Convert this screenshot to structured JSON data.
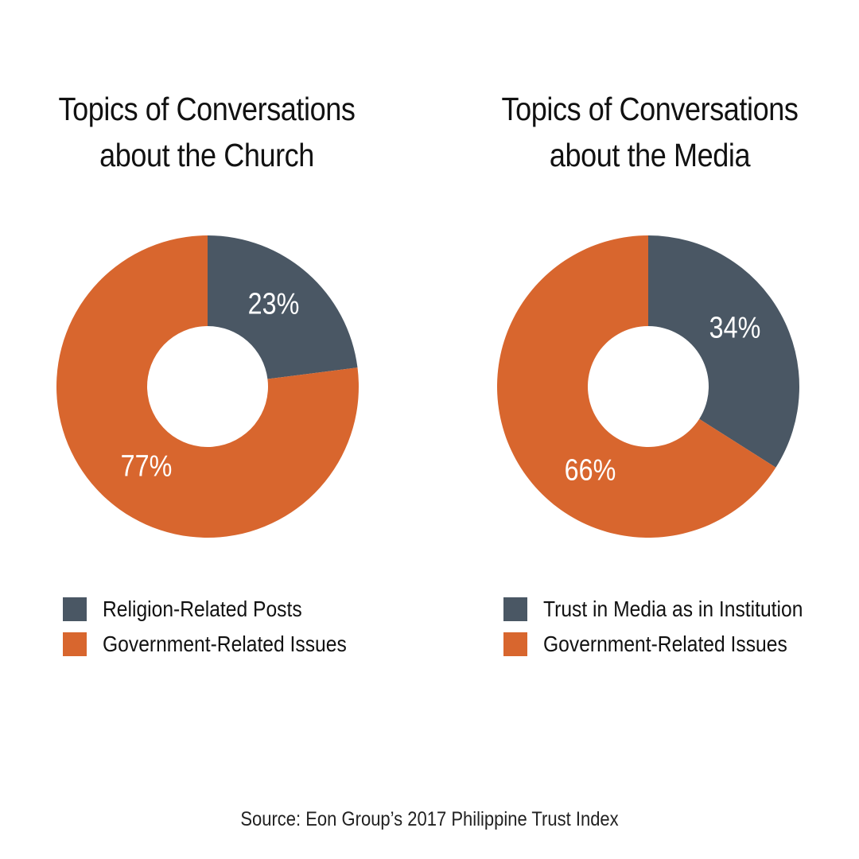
{
  "chart_data": [
    {
      "type": "pie",
      "style": "donut",
      "title": [
        "Topics of Conversations",
        "about the Church"
      ],
      "slices": [
        {
          "label": "Religion-Related Posts",
          "value": 23,
          "display": "23%",
          "color": "#4a5764"
        },
        {
          "label": "Government-Related Issues",
          "value": 77,
          "display": "77%",
          "color": "#d8662e"
        }
      ]
    },
    {
      "type": "pie",
      "style": "donut",
      "title": [
        "Topics of Conversations",
        "about the Media"
      ],
      "slices": [
        {
          "label": "Trust in Media as in Institution",
          "value": 34,
          "display": "34%",
          "color": "#4a5764"
        },
        {
          "label": "Government-Related Issues",
          "value": 66,
          "display": "66%",
          "color": "#d8662e"
        }
      ]
    }
  ],
  "source": "Source: Eon Group’s 2017 Philippine Trust Index",
  "colors": {
    "slate": "#4a5764",
    "orange": "#d8662e",
    "background": "#ffffff"
  }
}
